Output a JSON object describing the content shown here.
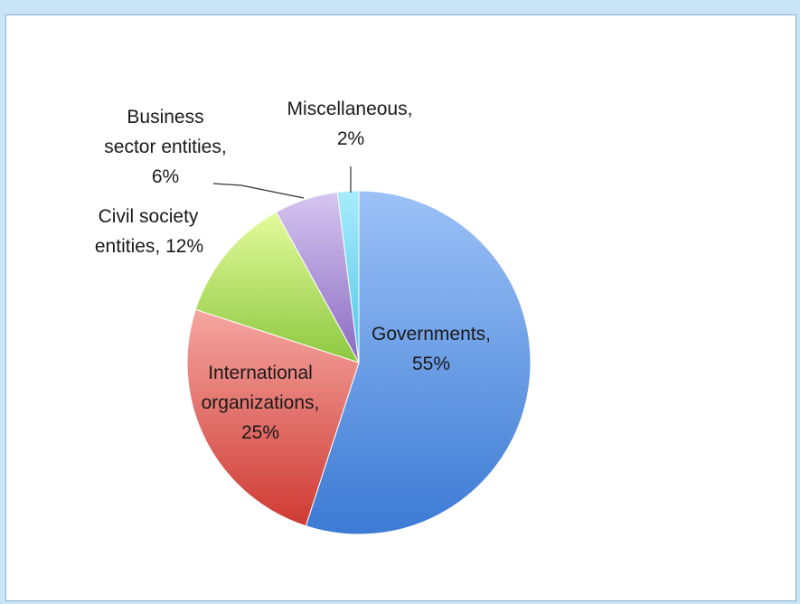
{
  "chart_data": {
    "type": "pie",
    "slices": [
      {
        "name": "Governments",
        "value": 55,
        "label_line1": "Governments,",
        "label_line2": "55%",
        "color": "#5b8fe0"
      },
      {
        "name": "International organizations",
        "value": 25,
        "label_line1": "International",
        "label_line2": "organizations,",
        "label_line3": "25%",
        "color": "#e35b5b"
      },
      {
        "name": "Civil society entities",
        "value": 12,
        "label_line1": "Civil society",
        "label_line2": "entities, 12%",
        "color": "#a9d45a"
      },
      {
        "name": "Business sector entities",
        "value": 6,
        "label_line1": "Business",
        "label_line2": "sector entities,",
        "label_line3": "6%",
        "color": "#9b7fcf"
      },
      {
        "name": "Miscellaneous",
        "value": 2,
        "label_line1": "Miscellaneous,",
        "label_line2": "2%",
        "color": "#6dd6ef"
      }
    ]
  }
}
